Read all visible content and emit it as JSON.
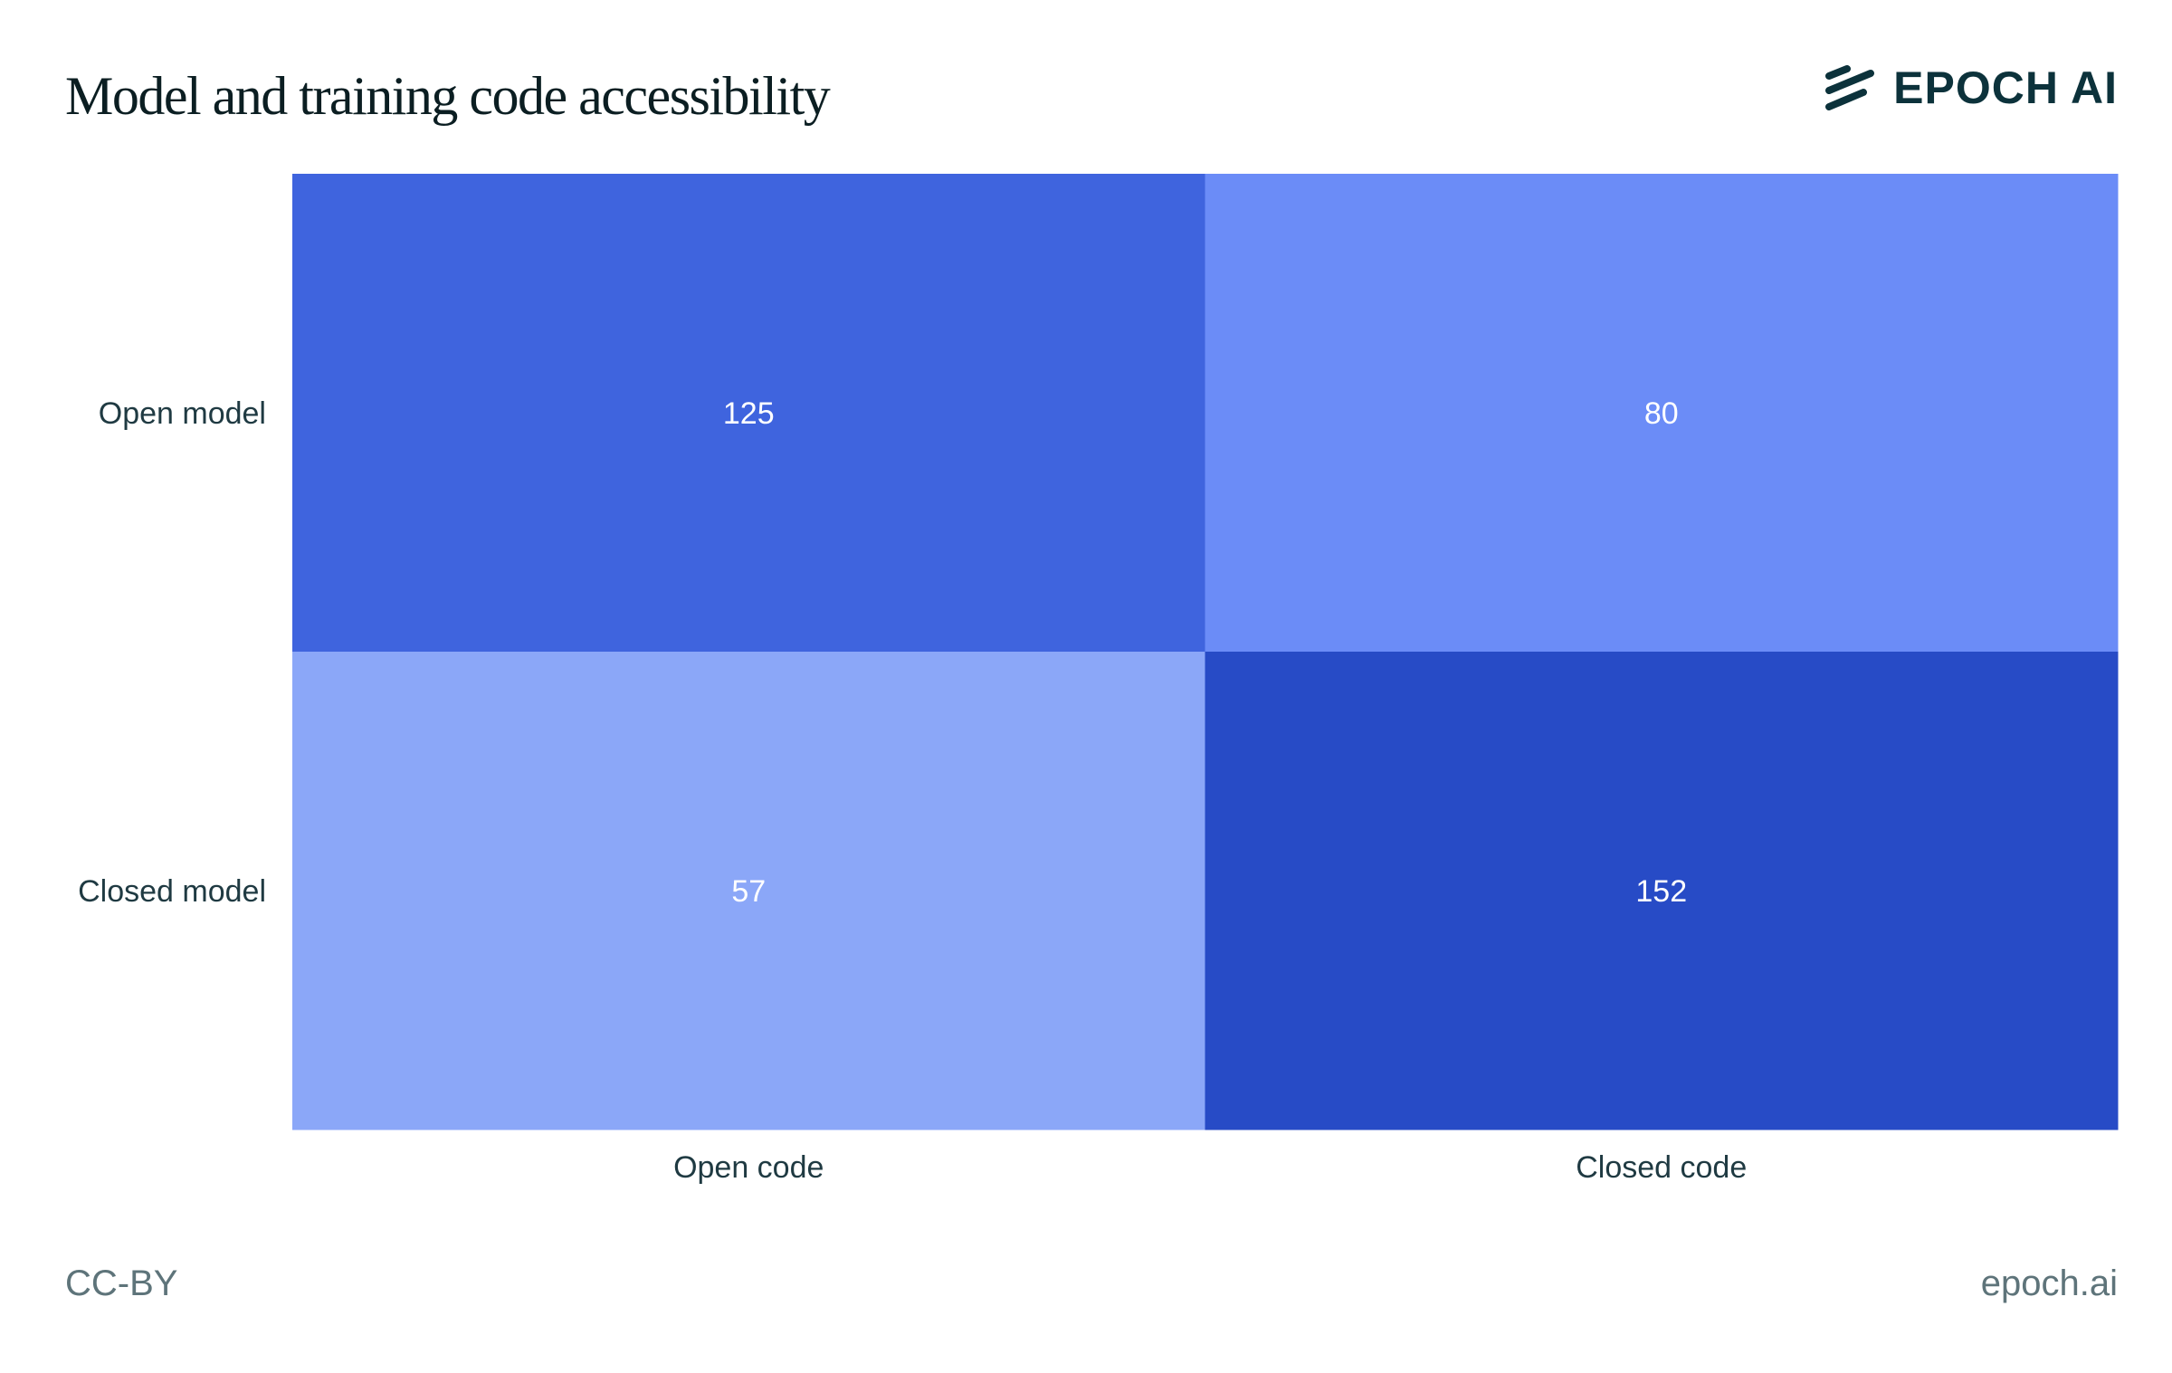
{
  "header": {
    "title": "Model and training code accessibility",
    "logo_text": "EPOCH AI"
  },
  "footer": {
    "license": "CC-BY",
    "site": "epoch.ai"
  },
  "chart_data": {
    "type": "heatmap",
    "title": "Model and training code accessibility",
    "x_categories": [
      "Open code",
      "Closed code"
    ],
    "y_categories": [
      "Open model",
      "Closed model"
    ],
    "values": [
      [
        125,
        80
      ],
      [
        57,
        152
      ]
    ],
    "colors": [
      [
        "#3f64de",
        "#6b8cf7"
      ],
      [
        "#8ba7f8",
        "#274bc6"
      ]
    ],
    "label_color": "#ffffff",
    "axis_text_color": "#1f3a42"
  }
}
